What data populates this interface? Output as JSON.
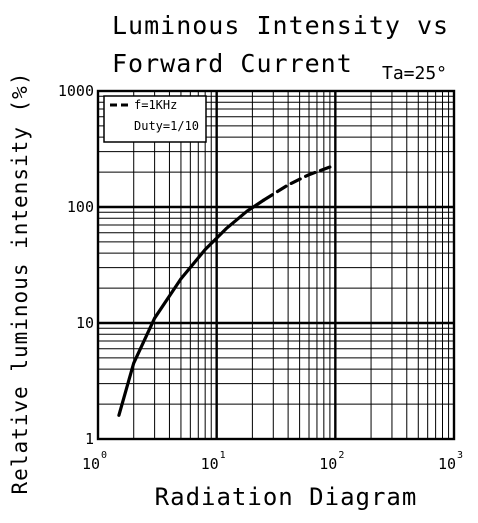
{
  "chart_data": {
    "type": "line",
    "title": [
      "Luminous Intensity vs",
      "Forward Current"
    ],
    "condition": "Ta=25°",
    "xlabel": "Radiation Diagram",
    "ylabel": "Relative luminous intensity (%)",
    "x_scale": "log",
    "y_scale": "log",
    "xlim": [
      1,
      1000
    ],
    "ylim": [
      1,
      1000
    ],
    "x_ticks": [
      {
        "base": "10",
        "exp": "0"
      },
      {
        "base": "10",
        "exp": "1"
      },
      {
        "base": "10",
        "exp": "2"
      },
      {
        "base": "10",
        "exp": "3"
      }
    ],
    "y_ticks": [
      "1",
      "10",
      "100",
      "1000"
    ],
    "grid": true,
    "legend": {
      "placement": "top-left",
      "entries": [
        "f=1KHz",
        "Duty=1/10"
      ]
    },
    "series": [
      {
        "style": "solid",
        "x": [
          1.5,
          2,
          3,
          5,
          8,
          12,
          18,
          25
        ],
        "y": [
          1.6,
          4.5,
          11,
          24,
          43,
          65,
          92,
          115
        ]
      },
      {
        "style": "dashed",
        "x": [
          25,
          40,
          60,
          100
        ],
        "y": [
          115,
          155,
          190,
          230
        ]
      }
    ]
  }
}
